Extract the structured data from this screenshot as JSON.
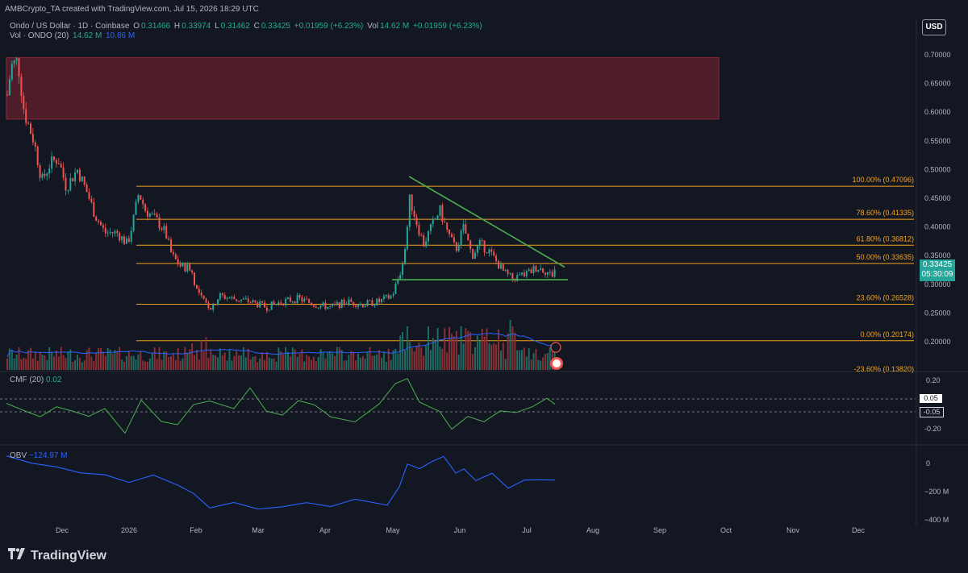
{
  "topbar": {
    "credit": "AMBCrypto_TA created with TradingView.com, Jul 15, 2026 18:29 UTC"
  },
  "legend": {
    "symbol": "Ondo / US Dollar · 1D · Coinbase",
    "o_label": "O",
    "o": "0.31466",
    "h_label": "H",
    "h": "0.33974",
    "l_label": "L",
    "l": "0.31462",
    "c_label": "C",
    "c": "0.33425",
    "change": "+0.01959 (+6.23%)",
    "vol_label": "Vol",
    "vol": "14.62 M",
    "vol_change": "+0.01959 (+6.23%)",
    "vol_ma_label": "Vol · ONDO (20)",
    "vol_ma_1": "14.62 M",
    "vol_ma_2": "10.86 M"
  },
  "currency_button": "USD",
  "price_axis": [
    "0.70000",
    "0.65000",
    "0.60000",
    "0.55000",
    "0.50000",
    "0.45000",
    "0.40000",
    "0.35000",
    "0.30000",
    "0.25000",
    "0.20000"
  ],
  "current_price": {
    "value": "0.33425",
    "countdown": "05:30:09"
  },
  "fib_levels": [
    {
      "label": "100.00% (0.47096)",
      "price": 0.47096
    },
    {
      "label": "78.60% (0.41335)",
      "price": 0.41335
    },
    {
      "label": "61.80% (0.36812)",
      "price": 0.36812
    },
    {
      "label": "50.00% (0.33635)",
      "price": 0.33635
    },
    {
      "label": "23.60% (0.26528)",
      "price": 0.26528
    },
    {
      "label": "0.00% (0.20174)",
      "price": 0.20174
    },
    {
      "label": "-23.60% (0.13820)",
      "price": 0.1382
    }
  ],
  "supply_zone": {
    "top": 0.695,
    "bottom": 0.588
  },
  "triangle": {
    "top_start": 0.488,
    "top_end": 0.33,
    "base": 0.308
  },
  "cmf": {
    "label": "CMF (20)",
    "value": "0.02",
    "axis": [
      "0.20",
      "-0.20"
    ],
    "tags": [
      "0.05",
      "-0.05"
    ]
  },
  "obv": {
    "label": "OBV",
    "value": "−124.97 M",
    "axis": [
      "0",
      "−200 M",
      "−400 M"
    ]
  },
  "time_axis": [
    "Dec",
    "2026",
    "Feb",
    "Mar",
    "Apr",
    "May",
    "Jun",
    "Jul",
    "Aug",
    "Sep",
    "Oct",
    "Nov",
    "Dec"
  ],
  "colors": {
    "bg": "#131722",
    "up": "#26a69a",
    "down": "#ef5350",
    "fib": "#f7a21b",
    "trend": "#4caf50",
    "zone": "#5b1f2b",
    "ma": "#2962ff",
    "obv": "#2962ff",
    "cmf": "#4caf50"
  },
  "brand": "TradingView"
}
